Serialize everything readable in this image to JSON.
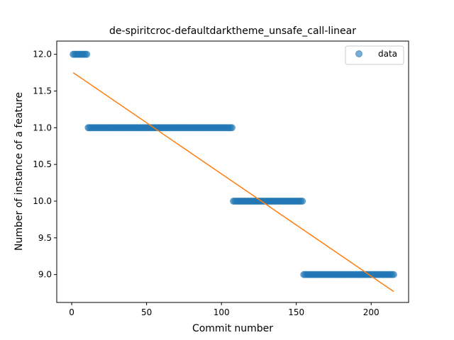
{
  "chart_data": {
    "type": "scatter",
    "title": "de-spiritcroc-defaultdarktheme_unsafe_call-linear",
    "xlabel": "Commit number",
    "ylabel": "Number of instance of a feature",
    "xlim": [
      -10,
      225
    ],
    "ylim": [
      8.62,
      12.18
    ],
    "xticks": [
      0,
      50,
      100,
      150,
      200
    ],
    "xtick_labels": [
      "0",
      "50",
      "100",
      "150",
      "200"
    ],
    "yticks": [
      9.0,
      9.5,
      10.0,
      10.5,
      11.0,
      11.5,
      12.0
    ],
    "ytick_labels": [
      "9.0",
      "9.5",
      "10.0",
      "10.5",
      "11.0",
      "11.5",
      "12.0"
    ],
    "grid": false,
    "legend_position": "top-right",
    "series": [
      {
        "name": "data",
        "kind": "scatter",
        "color": "#1f77b4",
        "segments": [
          {
            "x_start": 1,
            "x_end": 10,
            "y": 12.0
          },
          {
            "x_start": 11,
            "x_end": 107,
            "y": 11.0
          },
          {
            "x_start": 108,
            "x_end": 154,
            "y": 10.0
          },
          {
            "x_start": 155,
            "x_end": 215,
            "y": 9.0
          }
        ]
      },
      {
        "name": "",
        "kind": "line",
        "color": "#ff7f0e",
        "x": [
          1,
          215
        ],
        "y": [
          11.75,
          8.77
        ]
      }
    ]
  }
}
